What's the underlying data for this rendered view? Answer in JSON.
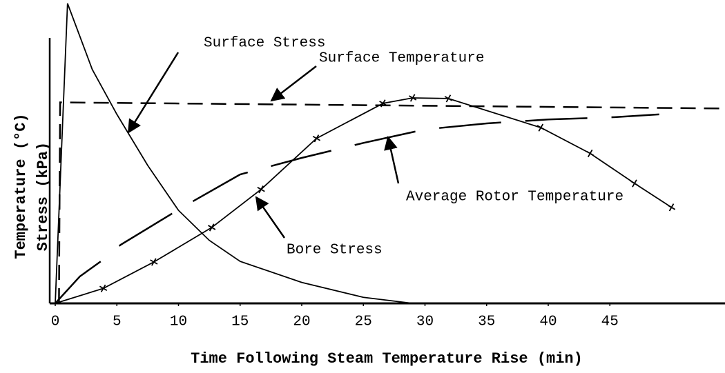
{
  "chart_data": {
    "type": "line",
    "x_label": "Time Following Steam Temperature Rise (min)",
    "y_labels": [
      "Temperature (°C)",
      "Stress (kPa)"
    ],
    "xlim": [
      0,
      54
    ],
    "xticks": [
      0,
      5,
      10,
      15,
      20,
      25,
      30,
      35,
      40,
      45
    ],
    "ylim": [
      0,
      100
    ],
    "series": [
      {
        "name": "Surface Stress",
        "color": "#000000",
        "style": "solid",
        "markers": false,
        "x": [
          0,
          1,
          3,
          5,
          7.5,
          10,
          12.5,
          15,
          20,
          25,
          29
        ],
        "values": [
          0,
          100,
          78,
          63,
          46,
          31,
          21,
          14,
          7,
          2,
          0
        ]
      },
      {
        "name": "Surface Temperature",
        "color": "#000000",
        "style": "dashed",
        "markers": false,
        "x": [
          0.3,
          0.4,
          54
        ],
        "values": [
          0,
          67,
          65
        ]
      },
      {
        "name": "Average Rotor Temperature",
        "color": "#000000",
        "style": "longdash",
        "markers": false,
        "x": [
          0,
          2,
          3.7,
          5.3,
          10.3,
          15,
          20,
          25,
          30,
          35,
          40,
          45,
          49
        ],
        "values": [
          0,
          9,
          14,
          19.5,
          32,
          43,
          48.5,
          53.5,
          58,
          60,
          61.3,
          62,
          63
        ]
      },
      {
        "name": "Bore Stress",
        "color": "#000000",
        "style": "solid",
        "markers": true,
        "x": [
          0,
          3.9,
          8,
          12.7,
          16.7,
          21.2,
          26.6,
          29,
          31.9,
          39.4,
          43.4,
          47,
          50
        ],
        "values": [
          0,
          5,
          13.8,
          25.3,
          38,
          55,
          66.7,
          68.5,
          68.3,
          58.6,
          50,
          40,
          32
        ]
      }
    ]
  }
}
